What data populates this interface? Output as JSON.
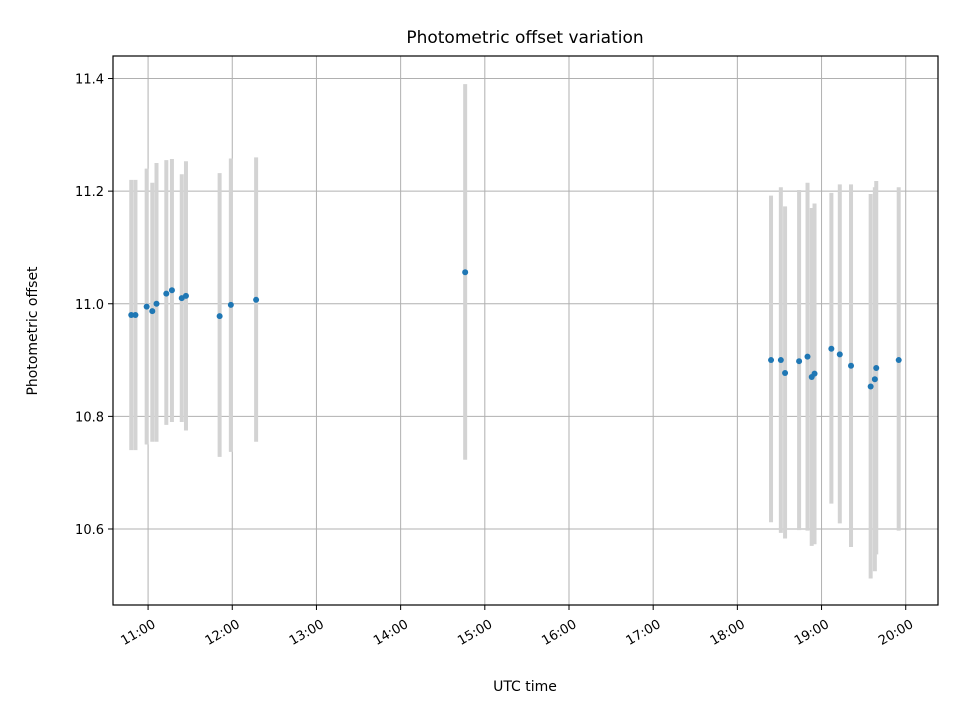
{
  "chart_data": {
    "type": "scatter",
    "title": "Photometric offset variation",
    "xlabel": "UTC time",
    "ylabel": "Photometric offset",
    "xlim": [
      "10:35",
      "20:23"
    ],
    "ylim": [
      10.465,
      11.44
    ],
    "grid": true,
    "x_ticks": [
      "11:00",
      "12:00",
      "13:00",
      "14:00",
      "15:00",
      "16:00",
      "17:00",
      "18:00",
      "19:00",
      "20:00"
    ],
    "y_ticks": [
      10.6,
      10.8,
      11.0,
      11.2,
      11.4
    ],
    "y_tick_labels": [
      "10.6",
      "10.8",
      "11.0",
      "11.2",
      "11.4"
    ],
    "marker_color": "#1f77b4",
    "errorbar_color": "#d3d3d3",
    "points": [
      {
        "time": "10:48",
        "y": 10.98,
        "err_low": 10.74,
        "err_high": 11.22
      },
      {
        "time": "10:51",
        "y": 10.98,
        "err_low": 10.74,
        "err_high": 11.22
      },
      {
        "time": "10:59",
        "y": 10.995,
        "err_low": 10.75,
        "err_high": 11.24
      },
      {
        "time": "11:03",
        "y": 10.987,
        "err_low": 10.755,
        "err_high": 11.215
      },
      {
        "time": "11:06",
        "y": 11.0,
        "err_low": 10.755,
        "err_high": 11.25
      },
      {
        "time": "11:13",
        "y": 11.018,
        "err_low": 10.785,
        "err_high": 11.255
      },
      {
        "time": "11:17",
        "y": 11.024,
        "err_low": 10.79,
        "err_high": 11.257
      },
      {
        "time": "11:24",
        "y": 11.01,
        "err_low": 10.79,
        "err_high": 11.23
      },
      {
        "time": "11:27",
        "y": 11.014,
        "err_low": 10.775,
        "err_high": 11.253
      },
      {
        "time": "11:51",
        "y": 10.978,
        "err_low": 10.728,
        "err_high": 11.232
      },
      {
        "time": "11:59",
        "y": 10.998,
        "err_low": 10.737,
        "err_high": 11.258
      },
      {
        "time": "12:17",
        "y": 11.007,
        "err_low": 10.755,
        "err_high": 11.26
      },
      {
        "time": "14:46",
        "y": 11.056,
        "err_low": 10.723,
        "err_high": 11.39
      },
      {
        "time": "18:24",
        "y": 10.9,
        "err_low": 10.612,
        "err_high": 11.192
      },
      {
        "time": "18:31",
        "y": 10.9,
        "err_low": 10.593,
        "err_high": 11.207
      },
      {
        "time": "18:34",
        "y": 10.877,
        "err_low": 10.583,
        "err_high": 11.173
      },
      {
        "time": "18:44",
        "y": 10.898,
        "err_low": 10.598,
        "err_high": 11.202
      },
      {
        "time": "18:50",
        "y": 10.906,
        "err_low": 10.597,
        "err_high": 11.215
      },
      {
        "time": "18:53",
        "y": 10.87,
        "err_low": 10.57,
        "err_high": 11.17
      },
      {
        "time": "18:55",
        "y": 10.876,
        "err_low": 10.573,
        "err_high": 11.178
      },
      {
        "time": "19:07",
        "y": 10.92,
        "err_low": 10.645,
        "err_high": 11.197
      },
      {
        "time": "19:13",
        "y": 10.91,
        "err_low": 10.61,
        "err_high": 11.212
      },
      {
        "time": "19:21",
        "y": 10.89,
        "err_low": 10.568,
        "err_high": 11.212
      },
      {
        "time": "19:35",
        "y": 10.853,
        "err_low": 10.512,
        "err_high": 11.195
      },
      {
        "time": "19:38",
        "y": 10.866,
        "err_low": 10.525,
        "err_high": 11.207
      },
      {
        "time": "19:39",
        "y": 10.886,
        "err_low": 10.555,
        "err_high": 11.218
      },
      {
        "time": "19:55",
        "y": 10.9,
        "err_low": 10.597,
        "err_high": 11.207
      }
    ]
  }
}
